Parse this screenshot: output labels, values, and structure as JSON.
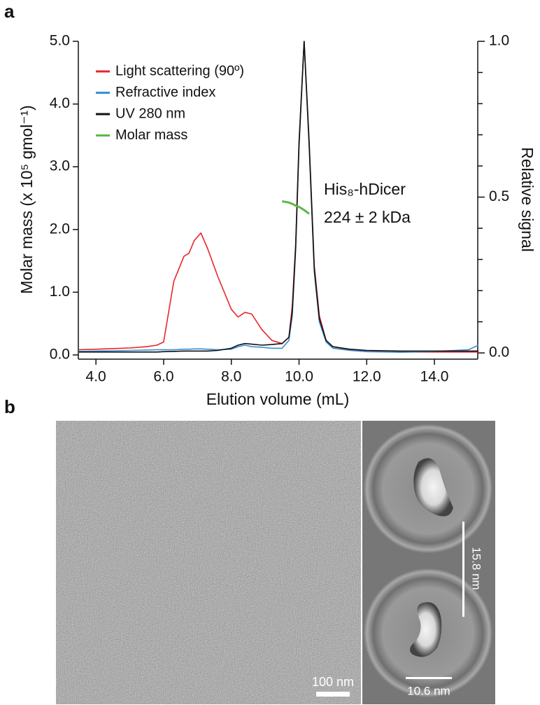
{
  "panel_a": {
    "label": "a"
  },
  "chart_data": {
    "type": "line",
    "xlabel": "Elution volume (mL)",
    "ylabel": "Molar mass (x 10⁵ gmol⁻¹)",
    "y2label": "Relative signal",
    "xlim": [
      3.48,
      15.28
    ],
    "ylim": [
      -0.067,
      5.0
    ],
    "y2lim": [
      -0.02,
      1.0
    ],
    "xticks": [
      {
        "value": 4,
        "label": "4.0"
      },
      {
        "value": 6,
        "label": "6.0"
      },
      {
        "value": 8,
        "label": "8.0"
      },
      {
        "value": 10,
        "label": "10.0"
      },
      {
        "value": 12,
        "label": "12.0"
      },
      {
        "value": 14,
        "label": "14.0"
      }
    ],
    "yticks": [
      {
        "value": 0,
        "label": "0.0"
      },
      {
        "value": 1,
        "label": "1.0"
      },
      {
        "value": 2,
        "label": "2.0"
      },
      {
        "value": 3,
        "label": "3.0"
      },
      {
        "value": 4,
        "label": "4.0"
      },
      {
        "value": 5,
        "label": "5.0"
      }
    ],
    "y2ticks": [
      {
        "value": 0,
        "label": "0.0"
      },
      {
        "value": 0.5,
        "label": "0.5"
      },
      {
        "value": 1,
        "label": "1.0"
      }
    ],
    "y2minorticks": [
      0.1,
      0.2,
      0.3,
      0.4,
      0.6,
      0.7,
      0.8,
      0.9
    ],
    "legend": "upper left",
    "x": [
      3.5,
      4,
      4.5,
      5,
      5.5,
      5.8,
      6,
      6.3,
      6.6,
      6.75,
      6.9,
      7.1,
      7.3,
      7.6,
      8,
      8.2,
      8.4,
      8.6,
      8.9,
      9.2,
      9.5,
      9.7,
      9.8,
      9.9,
      10,
      10.15,
      10.3,
      10.45,
      10.6,
      10.8,
      11,
      11.5,
      12,
      13,
      14,
      15,
      15.3
    ],
    "series": [
      {
        "name": "Light scattering (90º)",
        "color": "#e8262b",
        "axis": "y2",
        "values": [
          0.01,
          0.012,
          0.014,
          0.016,
          0.02,
          0.025,
          0.035,
          0.23,
          0.31,
          0.32,
          0.36,
          0.385,
          0.335,
          0.245,
          0.14,
          0.115,
          0.13,
          0.125,
          0.075,
          0.04,
          0.03,
          0.05,
          0.15,
          0.35,
          0.68,
          1.0,
          0.68,
          0.28,
          0.12,
          0.04,
          0.02,
          0.01,
          0.005,
          0.003,
          0.003,
          0.003,
          0.003
        ]
      },
      {
        "name": "Refractive index",
        "color": "#3b8fd4",
        "axis": "y2",
        "values": [
          0.005,
          0.006,
          0.007,
          0.008,
          0.009,
          0.01,
          0.01,
          0.01,
          0.012,
          0.012,
          0.013,
          0.013,
          0.012,
          0.01,
          0.012,
          0.02,
          0.025,
          0.02,
          0.018,
          0.015,
          0.015,
          0.04,
          0.12,
          0.33,
          0.66,
          1.0,
          0.66,
          0.26,
          0.1,
          0.035,
          0.015,
          0.008,
          0.004,
          0.002,
          0.005,
          0.01,
          0.025
        ]
      },
      {
        "name": "UV 280 nm",
        "color": "#111111",
        "axis": "y2",
        "values": [
          0.003,
          0.003,
          0.003,
          0.003,
          0.003,
          0.003,
          0.004,
          0.005,
          0.006,
          0.006,
          0.006,
          0.006,
          0.006,
          0.008,
          0.015,
          0.025,
          0.03,
          0.028,
          0.025,
          0.027,
          0.03,
          0.05,
          0.13,
          0.34,
          0.67,
          1.0,
          0.67,
          0.27,
          0.11,
          0.04,
          0.02,
          0.012,
          0.008,
          0.006,
          0.006,
          0.006,
          0.006
        ]
      },
      {
        "name": "Molar mass",
        "color": "#5cb847",
        "values": [
          null,
          null,
          null,
          null,
          null,
          null,
          null,
          null,
          null,
          null,
          null,
          null,
          null,
          null,
          null,
          null,
          null,
          null,
          null,
          null,
          2.45,
          2.43,
          2.41,
          2.38,
          2.36,
          2.31,
          2.25,
          null,
          null,
          null,
          null,
          null,
          null,
          null,
          null,
          null,
          null
        ]
      }
    ],
    "annotations": [
      "His₈-hDicer",
      "224 ± 2 kDa"
    ]
  },
  "panel_b": {
    "label": "b",
    "scale_bar": "100 nm",
    "class_average_height": "15.8 nm",
    "class_average_width": "10.6 nm"
  }
}
